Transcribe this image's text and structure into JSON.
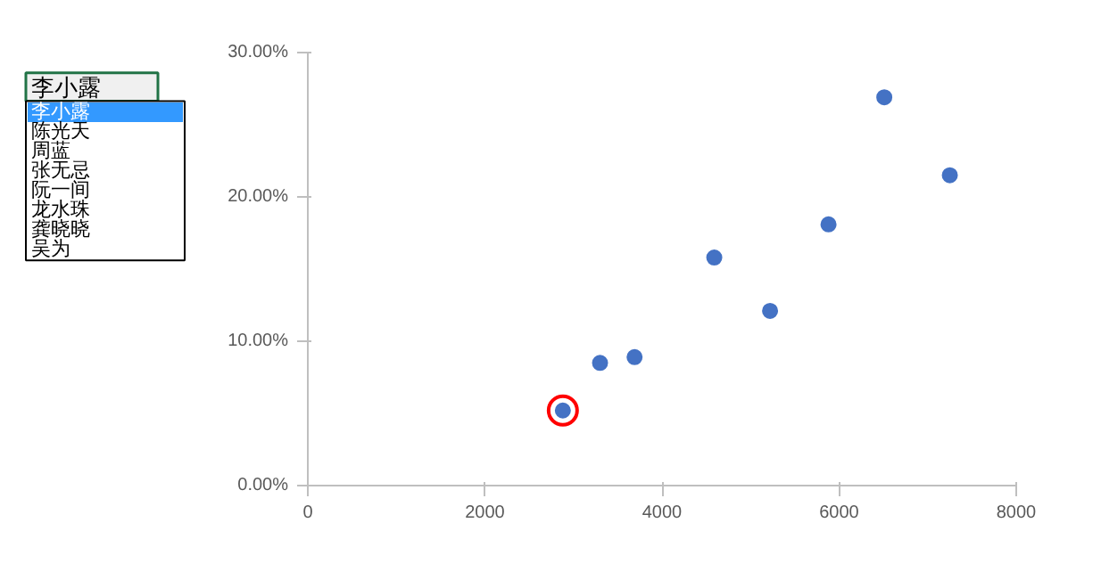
{
  "chart_data": {
    "type": "scatter",
    "xlim": [
      0,
      8000
    ],
    "xticks": [
      0,
      2000,
      4000,
      6000,
      8000
    ],
    "ylim": [
      0,
      30
    ],
    "yticks": [
      {
        "value": 0,
        "label": "0.00%"
      },
      {
        "value": 10,
        "label": "10.00%"
      },
      {
        "value": 20,
        "label": "20.00%"
      },
      {
        "value": 30,
        "label": "30.00%"
      }
    ],
    "grid": false,
    "marker": "circle",
    "annotations": [
      "李小露",
      "李小露",
      "陈光天",
      "周蓝",
      "张无忌",
      "阮一间",
      "龙水珠",
      "龚晓晓",
      "吴为"
    ],
    "series": [
      {
        "color": "#4472c4",
        "x": [
          2880,
          3300,
          3690,
          4590,
          5220,
          5880,
          6510,
          7250
        ],
        "values": [
          5.2,
          8.5,
          8.9,
          15.8,
          12.1,
          18.1,
          26.9,
          21.5
        ]
      },
      {
        "type": "scatter",
        "color": "#ff0000",
        "x": [
          2880
        ],
        "values": [
          5.2
        ]
      }
    ]
  }
}
